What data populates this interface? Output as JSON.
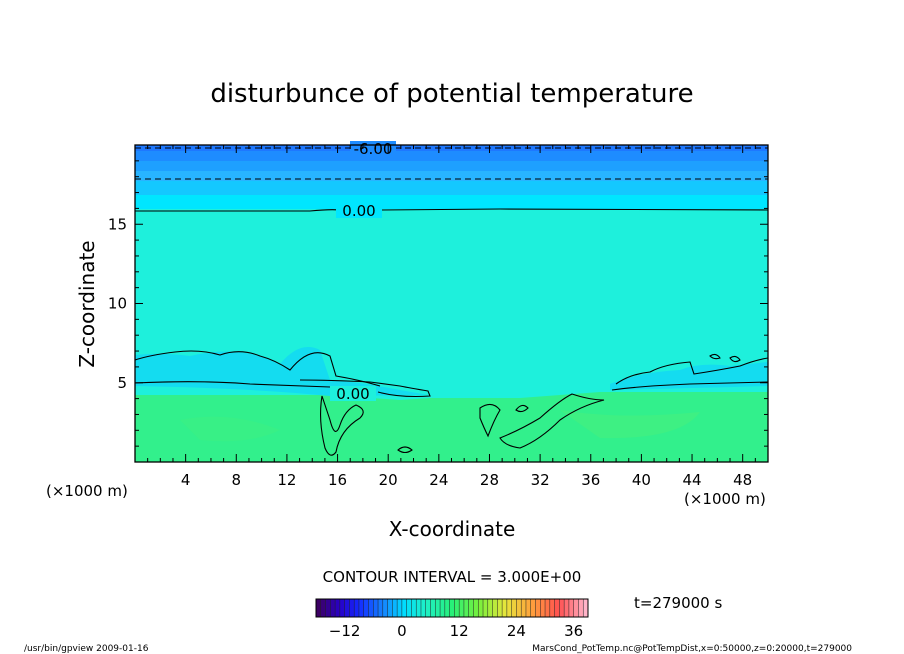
{
  "chart_data": {
    "type": "heatmap",
    "title": "disturbunce of potential temperature",
    "xlabel": "X-coordinate",
    "ylabel": "Z-coordinate",
    "x_unit_left": "(×1000 m)",
    "x_unit_right": "(×1000 m)",
    "xlim": [
      0,
      50
    ],
    "ylim": [
      0,
      20
    ],
    "x_ticks": [
      4,
      8,
      12,
      16,
      20,
      24,
      28,
      32,
      36,
      40,
      44,
      48
    ],
    "y_ticks": [
      5,
      10,
      15
    ],
    "contour_labels": [
      "-6.00",
      "0.00",
      "0.00"
    ],
    "contour_interval_text": "CONTOUR INTERVAL = 3.000E+00",
    "time_text": "t=279000 s",
    "colorbar": {
      "min": -18,
      "max": 39,
      "tick_values": [
        -12,
        0,
        12,
        24,
        36
      ],
      "tick_labels": [
        "−12",
        "0",
        "12",
        "24",
        "36"
      ]
    },
    "field_description_levels": [
      {
        "z_range": [
          0,
          4.2
        ],
        "value_range": [
          3,
          6
        ]
      },
      {
        "z_range": [
          4.2,
          5.5
        ],
        "value_range": [
          -3,
          0
        ]
      },
      {
        "z_range": [
          5.5,
          16
        ],
        "value_range": [
          0,
          3
        ]
      },
      {
        "z_range": [
          16,
          18
        ],
        "value_range": [
          -3,
          0
        ]
      },
      {
        "z_range": [
          18,
          20
        ],
        "value_range": [
          -9,
          -3
        ]
      }
    ]
  },
  "footer": {
    "left": "/usr/bin/gpview   2009-01-16",
    "right": "MarsCond_PotTemp.nc@PotTempDist,x=0:50000,z=0:20000,t=279000"
  },
  "colors": {
    "sky_top": "#1e8cff",
    "upper_blue": "#28b4ff",
    "cyan_band": "#00e6ff",
    "aqua_main": "#1ef0dc",
    "lower_blue": "#14dcf0",
    "green_low": "#32f08c"
  }
}
